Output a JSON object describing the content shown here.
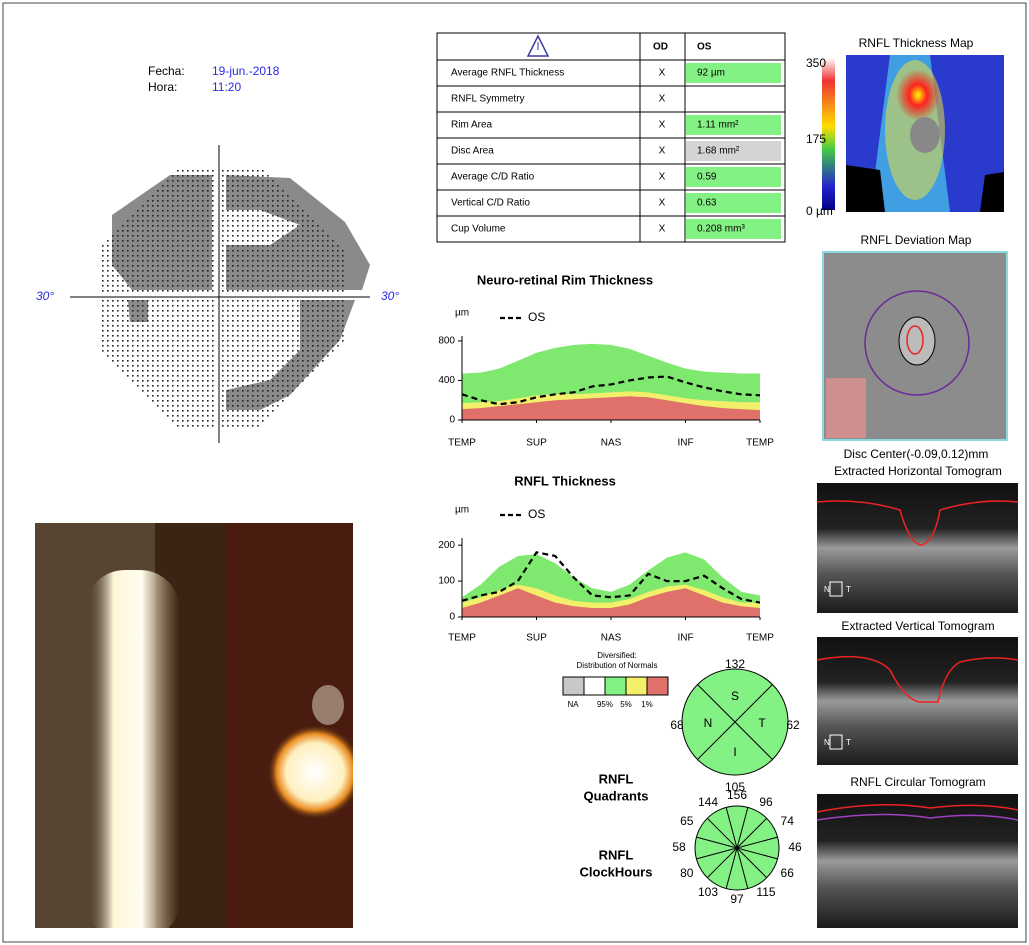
{
  "header": {
    "date_label": "Fecha:",
    "date": "19-jun.-2018",
    "time_label": "Hora:",
    "time": "11:20"
  },
  "visual_field": {
    "left_label": "30°",
    "right_label": "30°"
  },
  "table": {
    "columns": [
      "OD",
      "OS"
    ],
    "rows": [
      {
        "label": "Average RNFL Thickness",
        "od": "X",
        "os": "92 µm",
        "os_color": "#84f184"
      },
      {
        "label": "RNFL Symmetry",
        "od": "X"
      },
      {
        "label": "Rim Area",
        "od": "X",
        "os": "1.11 mm²",
        "os_color": "#84f184"
      },
      {
        "label": "Disc Area",
        "od": "X",
        "os": "1.68 mm²",
        "os_color": "#d4d4d4"
      },
      {
        "label": "Average C/D Ratio",
        "od": "X",
        "os": "0.59",
        "os_color": "#84f184"
      },
      {
        "label": "Vertical C/D Ratio",
        "od": "X",
        "os": "0.63",
        "os_color": "#84f184"
      },
      {
        "label": "Cup Volume",
        "od": "X",
        "os": "0.208 mm³",
        "os_color": "#84f184"
      }
    ]
  },
  "chart_data": [
    {
      "type": "line",
      "title": "Neuro-retinal Rim Thickness",
      "y_label": "µm",
      "x": [
        0,
        1,
        2,
        3,
        4,
        5,
        6,
        7,
        8,
        9,
        10,
        11,
        12,
        13,
        14,
        15,
        16
      ],
      "xlim": [
        0,
        16
      ],
      "xticks": [
        {
          "value": 0,
          "label": "TEMP"
        },
        {
          "value": 4,
          "label": "SUP"
        },
        {
          "value": 8,
          "label": "NAS"
        },
        {
          "value": 12,
          "label": "INF"
        },
        {
          "value": 16,
          "label": "TEMP"
        }
      ],
      "ylim": [
        0,
        850
      ],
      "yticks": [
        0,
        400,
        800
      ],
      "series": [
        {
          "color": "#7fe86f",
          "fill": true,
          "values": [
            470,
            480,
            520,
            600,
            680,
            730,
            760,
            770,
            760,
            720,
            650,
            580,
            520,
            490,
            480,
            470,
            470
          ]
        },
        {
          "color": "#f2ef6a",
          "fill": true,
          "values": [
            170,
            180,
            190,
            220,
            250,
            260,
            260,
            270,
            280,
            290,
            280,
            250,
            220,
            200,
            190,
            180,
            180
          ]
        },
        {
          "color": "#e0706a",
          "fill": true,
          "values": [
            110,
            120,
            140,
            160,
            180,
            200,
            210,
            220,
            230,
            240,
            230,
            200,
            170,
            140,
            120,
            110,
            100
          ]
        },
        {
          "name": "OS",
          "color": "#000000",
          "dashed": true,
          "values": [
            260,
            200,
            160,
            180,
            230,
            260,
            280,
            340,
            360,
            400,
            430,
            440,
            380,
            330,
            290,
            260,
            250
          ]
        }
      ]
    },
    {
      "type": "line",
      "title": "RNFL Thickness",
      "y_label": "µm",
      "x": [
        0,
        1,
        2,
        3,
        4,
        5,
        6,
        7,
        8,
        9,
        10,
        11,
        12,
        13,
        14,
        15,
        16
      ],
      "xlim": [
        0,
        16
      ],
      "xticks": [
        {
          "value": 0,
          "label": "TEMP"
        },
        {
          "value": 4,
          "label": "SUP"
        },
        {
          "value": 8,
          "label": "NAS"
        },
        {
          "value": 12,
          "label": "INF"
        },
        {
          "value": 16,
          "label": "TEMP"
        }
      ],
      "ylim": [
        0,
        220
      ],
      "yticks": [
        0,
        100,
        200
      ],
      "series": [
        {
          "color": "#7fe86f",
          "fill": true,
          "values": [
            55,
            90,
            140,
            170,
            175,
            150,
            110,
            80,
            70,
            90,
            130,
            165,
            180,
            160,
            110,
            70,
            60
          ]
        },
        {
          "color": "#f2ef6a",
          "fill": true,
          "values": [
            40,
            55,
            75,
            90,
            80,
            60,
            45,
            40,
            40,
            50,
            70,
            85,
            90,
            75,
            55,
            40,
            40
          ]
        },
        {
          "color": "#e0706a",
          "fill": true,
          "values": [
            25,
            40,
            60,
            80,
            60,
            40,
            30,
            25,
            25,
            35,
            55,
            70,
            80,
            60,
            40,
            30,
            25
          ]
        },
        {
          "name": "OS",
          "color": "#000000",
          "dashed": true,
          "values": [
            45,
            60,
            70,
            100,
            180,
            170,
            110,
            60,
            55,
            60,
            120,
            100,
            100,
            115,
            80,
            50,
            40
          ]
        }
      ]
    }
  ],
  "normals_legend": {
    "title_lines": [
      "Diversified:",
      "Distribution of Normals"
    ],
    "colors": [
      "#c8c8c8",
      "#ffffff",
      "#84f184",
      "#f2ef6a",
      "#e0706a"
    ],
    "labels": [
      "NA",
      "95%",
      "5%",
      "1%"
    ]
  },
  "quadrants": {
    "title_lines": [
      "RNFL",
      "Quadrants"
    ],
    "letters": [
      "S",
      "T",
      "I",
      "N"
    ],
    "values": [
      132,
      62,
      105,
      68
    ]
  },
  "clockhours": {
    "title_lines": [
      "RNFL",
      "ClockHours"
    ],
    "values": [
      156,
      96,
      74,
      46,
      66,
      115,
      97,
      103,
      80,
      58,
      65,
      144
    ]
  },
  "maps": {
    "thickness_title": "RNFL Thickness Map",
    "scale_labels": [
      "350",
      "175",
      "0 µm"
    ],
    "deviation_title": "RNFL Deviation Map",
    "disc_center": "Disc Center(-0.09,0.12)mm",
    "horizontal_title": "Extracted Horizontal Tomogram",
    "vertical_title": "Extracted Vertical Tomogram",
    "circular_title": "RNFL Circular Tomogram",
    "nasal": "N",
    "temporal": "T"
  }
}
